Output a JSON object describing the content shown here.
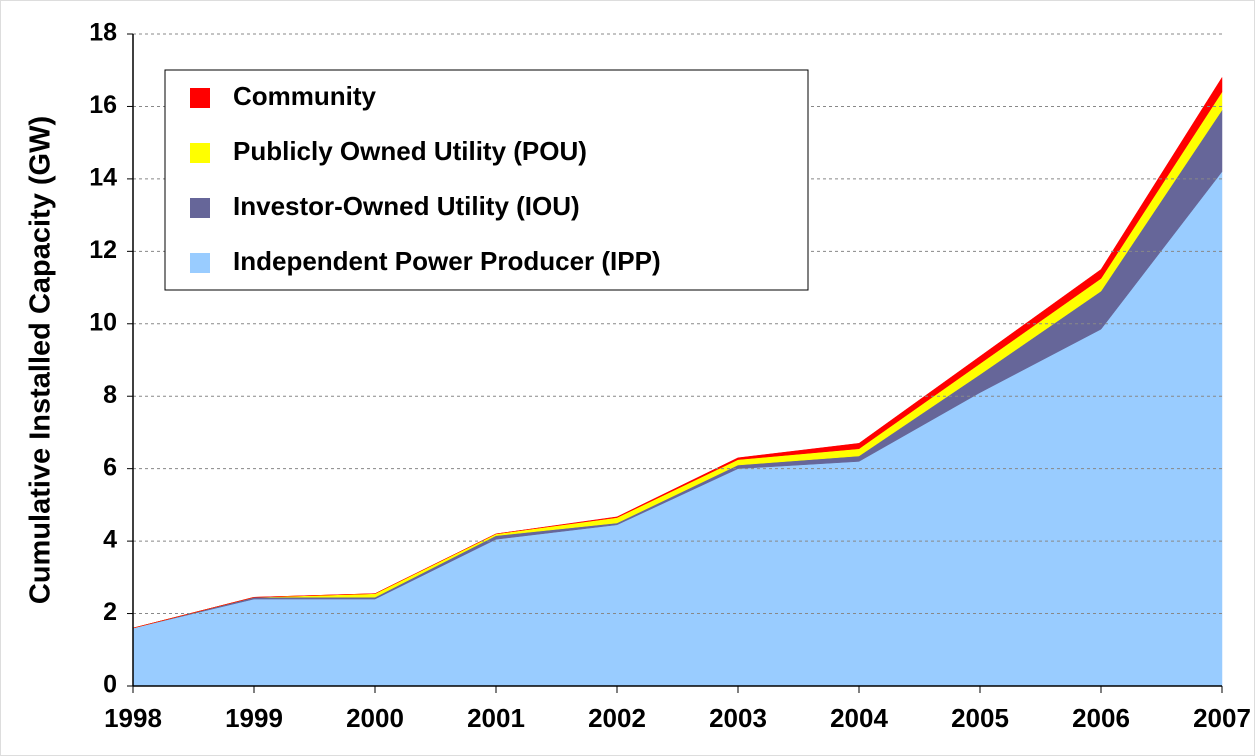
{
  "chart_data": {
    "type": "stacked_area",
    "y_label": "Cumulative Installed Capacity (GW)",
    "x": [
      1998,
      1999,
      2000,
      2001,
      2002,
      2003,
      2004,
      2005,
      2006,
      2007
    ],
    "xlim": [
      1998,
      2007
    ],
    "xticks": [
      1998,
      1999,
      2000,
      2001,
      2002,
      2003,
      2004,
      2005,
      2006,
      2007
    ],
    "ylim": [
      0,
      18
    ],
    "yticks": [
      0,
      2,
      4,
      6,
      8,
      10,
      12,
      14,
      16,
      18
    ],
    "grid": true,
    "legend": "upper left",
    "series": [
      {
        "name": "Independent Power Producer (IPP)",
        "color": "#99ccff",
        "values": [
          1.6,
          2.4,
          2.4,
          4.05,
          4.45,
          6.0,
          6.2,
          8.1,
          9.85,
          14.2
        ]
      },
      {
        "name": "Investor-Owned Utility (IOU)",
        "color": "#666699",
        "values": [
          0,
          0.05,
          0.05,
          0.1,
          0.05,
          0.1,
          0.15,
          0.5,
          1.05,
          1.7
        ]
      },
      {
        "name": "Publicly Owned Utility (POU)",
        "color": "#ffff00",
        "values": [
          0,
          0,
          0.1,
          0.05,
          0.15,
          0.15,
          0.2,
          0.3,
          0.35,
          0.5
        ]
      },
      {
        "name": "Community",
        "color": "#ff0000",
        "values": [
          0,
          0,
          0,
          0,
          0.02,
          0.05,
          0.15,
          0.2,
          0.25,
          0.4
        ]
      }
    ]
  }
}
